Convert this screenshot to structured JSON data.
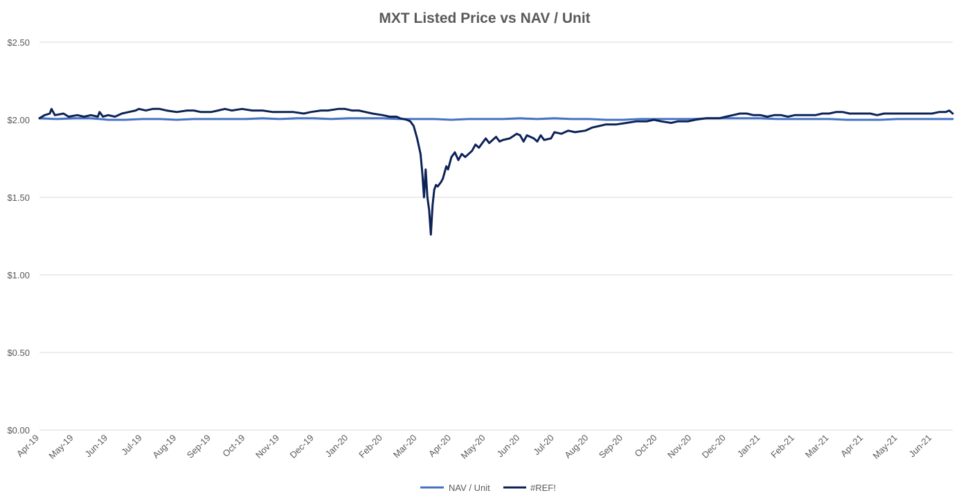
{
  "chart_data": {
    "type": "line",
    "title": "MXT Listed Price vs NAV / Unit",
    "xlabel": "",
    "ylabel": "",
    "ylim": [
      0,
      2.5
    ],
    "yticks": [
      {
        "value": 0,
        "label": "$0.00"
      },
      {
        "value": 0.5,
        "label": "$0.50"
      },
      {
        "value": 1.0,
        "label": "$1.00"
      },
      {
        "value": 1.5,
        "label": "$1.50"
      },
      {
        "value": 2.0,
        "label": "$2.00"
      },
      {
        "value": 2.5,
        "label": "$2.50"
      }
    ],
    "x_range": [
      0,
      26.6
    ],
    "x_tick_labels": [
      "Apr-19",
      "May-19",
      "Jun-19",
      "Jul-19",
      "Aug-19",
      "Sep-19",
      "Oct-19",
      "Nov-19",
      "Dec-19",
      "Jan-20",
      "Feb-20",
      "Mar-20",
      "Apr-20",
      "May-20",
      "Jun-20",
      "Jul-20",
      "Aug-20",
      "Sep-20",
      "Oct-20",
      "Nov-20",
      "Dec-20",
      "Jan-21",
      "Feb-21",
      "Mar-21",
      "Apr-21",
      "May-21",
      "Jun-21"
    ],
    "grid": true,
    "legend_position": "bottom",
    "series": [
      {
        "name": "NAV / Unit",
        "color": "#4472c4",
        "points": [
          [
            0,
            2.01
          ],
          [
            0.5,
            2.005
          ],
          [
            1,
            2.01
          ],
          [
            1.5,
            2.01
          ],
          [
            2,
            2.0
          ],
          [
            2.5,
            2.0
          ],
          [
            3,
            2.005
          ],
          [
            3.5,
            2.005
          ],
          [
            4,
            2.0
          ],
          [
            4.5,
            2.005
          ],
          [
            5,
            2.005
          ],
          [
            5.5,
            2.005
          ],
          [
            6,
            2.005
          ],
          [
            6.5,
            2.01
          ],
          [
            7,
            2.005
          ],
          [
            7.5,
            2.01
          ],
          [
            8,
            2.01
          ],
          [
            8.5,
            2.005
          ],
          [
            9,
            2.01
          ],
          [
            9.5,
            2.01
          ],
          [
            10,
            2.01
          ],
          [
            10.5,
            2.005
          ],
          [
            11,
            2.005
          ],
          [
            11.5,
            2.005
          ],
          [
            12,
            2.0
          ],
          [
            12.5,
            2.005
          ],
          [
            13,
            2.005
          ],
          [
            13.5,
            2.005
          ],
          [
            14,
            2.01
          ],
          [
            14.5,
            2.005
          ],
          [
            15,
            2.01
          ],
          [
            15.5,
            2.005
          ],
          [
            16,
            2.005
          ],
          [
            16.5,
            2.0
          ],
          [
            17,
            2.0
          ],
          [
            17.5,
            2.005
          ],
          [
            18,
            2.005
          ],
          [
            18.5,
            2.005
          ],
          [
            19,
            2.005
          ],
          [
            19.5,
            2.01
          ],
          [
            20,
            2.01
          ],
          [
            20.5,
            2.01
          ],
          [
            21,
            2.01
          ],
          [
            21.5,
            2.005
          ],
          [
            22,
            2.005
          ],
          [
            22.5,
            2.005
          ],
          [
            23,
            2.005
          ],
          [
            23.5,
            2.0
          ],
          [
            24,
            2.0
          ],
          [
            24.5,
            2.0
          ],
          [
            25,
            2.005
          ],
          [
            25.5,
            2.005
          ],
          [
            26,
            2.005
          ],
          [
            26.6,
            2.005
          ]
        ]
      },
      {
        "name": "#REF!",
        "color": "#0d2257",
        "points": [
          [
            0,
            2.01
          ],
          [
            0.15,
            2.03
          ],
          [
            0.3,
            2.04
          ],
          [
            0.35,
            2.07
          ],
          [
            0.45,
            2.03
          ],
          [
            0.7,
            2.04
          ],
          [
            0.85,
            2.02
          ],
          [
            1.1,
            2.03
          ],
          [
            1.3,
            2.02
          ],
          [
            1.5,
            2.03
          ],
          [
            1.7,
            2.02
          ],
          [
            1.75,
            2.05
          ],
          [
            1.85,
            2.02
          ],
          [
            2.0,
            2.03
          ],
          [
            2.2,
            2.02
          ],
          [
            2.4,
            2.04
          ],
          [
            2.6,
            2.05
          ],
          [
            2.8,
            2.06
          ],
          [
            2.9,
            2.07
          ],
          [
            3.1,
            2.06
          ],
          [
            3.3,
            2.07
          ],
          [
            3.5,
            2.07
          ],
          [
            3.7,
            2.06
          ],
          [
            4.0,
            2.05
          ],
          [
            4.3,
            2.06
          ],
          [
            4.5,
            2.06
          ],
          [
            4.7,
            2.05
          ],
          [
            5.0,
            2.05
          ],
          [
            5.2,
            2.06
          ],
          [
            5.4,
            2.07
          ],
          [
            5.6,
            2.06
          ],
          [
            5.9,
            2.07
          ],
          [
            6.2,
            2.06
          ],
          [
            6.5,
            2.06
          ],
          [
            6.8,
            2.05
          ],
          [
            7.1,
            2.05
          ],
          [
            7.4,
            2.05
          ],
          [
            7.7,
            2.04
          ],
          [
            7.9,
            2.05
          ],
          [
            8.2,
            2.06
          ],
          [
            8.4,
            2.06
          ],
          [
            8.7,
            2.07
          ],
          [
            8.9,
            2.07
          ],
          [
            9.1,
            2.06
          ],
          [
            9.3,
            2.06
          ],
          [
            9.5,
            2.05
          ],
          [
            9.7,
            2.04
          ],
          [
            10.0,
            2.03
          ],
          [
            10.2,
            2.02
          ],
          [
            10.4,
            2.02
          ],
          [
            10.5,
            2.01
          ],
          [
            10.7,
            2.0
          ],
          [
            10.8,
            1.99
          ],
          [
            10.9,
            1.96
          ],
          [
            11.0,
            1.88
          ],
          [
            11.1,
            1.78
          ],
          [
            11.15,
            1.66
          ],
          [
            11.2,
            1.5
          ],
          [
            11.25,
            1.68
          ],
          [
            11.3,
            1.5
          ],
          [
            11.35,
            1.42
          ],
          [
            11.4,
            1.26
          ],
          [
            11.45,
            1.45
          ],
          [
            11.5,
            1.55
          ],
          [
            11.55,
            1.58
          ],
          [
            11.6,
            1.57
          ],
          [
            11.7,
            1.6
          ],
          [
            11.75,
            1.62
          ],
          [
            11.8,
            1.66
          ],
          [
            11.85,
            1.7
          ],
          [
            11.9,
            1.68
          ],
          [
            11.95,
            1.72
          ],
          [
            12.0,
            1.76
          ],
          [
            12.1,
            1.79
          ],
          [
            12.2,
            1.74
          ],
          [
            12.3,
            1.78
          ],
          [
            12.4,
            1.76
          ],
          [
            12.6,
            1.8
          ],
          [
            12.7,
            1.84
          ],
          [
            12.8,
            1.82
          ],
          [
            13.0,
            1.88
          ],
          [
            13.1,
            1.85
          ],
          [
            13.3,
            1.89
          ],
          [
            13.4,
            1.86
          ],
          [
            13.5,
            1.87
          ],
          [
            13.7,
            1.88
          ],
          [
            13.9,
            1.91
          ],
          [
            14.0,
            1.9
          ],
          [
            14.1,
            1.86
          ],
          [
            14.2,
            1.9
          ],
          [
            14.4,
            1.88
          ],
          [
            14.5,
            1.86
          ],
          [
            14.6,
            1.9
          ],
          [
            14.7,
            1.87
          ],
          [
            14.9,
            1.88
          ],
          [
            15.0,
            1.92
          ],
          [
            15.2,
            1.91
          ],
          [
            15.4,
            1.93
          ],
          [
            15.6,
            1.92
          ],
          [
            15.9,
            1.93
          ],
          [
            16.1,
            1.95
          ],
          [
            16.3,
            1.96
          ],
          [
            16.5,
            1.97
          ],
          [
            16.8,
            1.97
          ],
          [
            17.1,
            1.98
          ],
          [
            17.4,
            1.99
          ],
          [
            17.7,
            1.99
          ],
          [
            17.9,
            2.0
          ],
          [
            18.1,
            1.99
          ],
          [
            18.4,
            1.98
          ],
          [
            18.6,
            1.99
          ],
          [
            18.9,
            1.99
          ],
          [
            19.1,
            2.0
          ],
          [
            19.4,
            2.01
          ],
          [
            19.6,
            2.01
          ],
          [
            19.8,
            2.01
          ],
          [
            20.0,
            2.02
          ],
          [
            20.2,
            2.03
          ],
          [
            20.4,
            2.04
          ],
          [
            20.6,
            2.04
          ],
          [
            20.8,
            2.03
          ],
          [
            21.0,
            2.03
          ],
          [
            21.2,
            2.02
          ],
          [
            21.4,
            2.03
          ],
          [
            21.6,
            2.03
          ],
          [
            21.8,
            2.02
          ],
          [
            22.0,
            2.03
          ],
          [
            22.2,
            2.03
          ],
          [
            22.4,
            2.03
          ],
          [
            22.6,
            2.03
          ],
          [
            22.8,
            2.04
          ],
          [
            23.0,
            2.04
          ],
          [
            23.2,
            2.05
          ],
          [
            23.4,
            2.05
          ],
          [
            23.6,
            2.04
          ],
          [
            23.8,
            2.04
          ],
          [
            24.0,
            2.04
          ],
          [
            24.2,
            2.04
          ],
          [
            24.4,
            2.03
          ],
          [
            24.6,
            2.04
          ],
          [
            24.8,
            2.04
          ],
          [
            25.0,
            2.04
          ],
          [
            25.2,
            2.04
          ],
          [
            25.4,
            2.04
          ],
          [
            25.6,
            2.04
          ],
          [
            25.8,
            2.04
          ],
          [
            26.0,
            2.04
          ],
          [
            26.2,
            2.05
          ],
          [
            26.4,
            2.05
          ],
          [
            26.5,
            2.06
          ],
          [
            26.6,
            2.04
          ]
        ]
      }
    ]
  }
}
